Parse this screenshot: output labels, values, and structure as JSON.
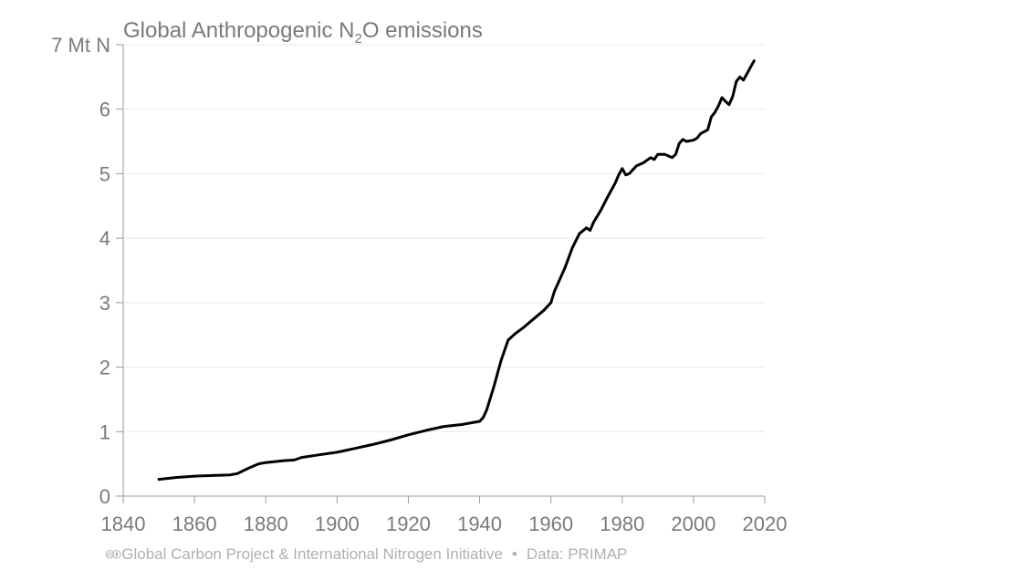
{
  "chart_data": {
    "type": "line",
    "title": "Global Anthropogenic N₂O emissions",
    "title_parts": {
      "prefix": "Global Anthropogenic N",
      "subscript": "2",
      "suffix": "O emissions"
    },
    "ylabel_top": "7 Mt N",
    "xlabel": "",
    "ylabel": "",
    "xlim": [
      1840,
      2020
    ],
    "ylim": [
      0,
      7
    ],
    "x_ticks": [
      1840,
      1860,
      1880,
      1900,
      1920,
      1940,
      1960,
      1980,
      2000,
      2020
    ],
    "y_ticks": [
      {
        "value": 0,
        "label": "0"
      },
      {
        "value": 1,
        "label": "1"
      },
      {
        "value": 2,
        "label": "2"
      },
      {
        "value": 3,
        "label": "3"
      },
      {
        "value": 4,
        "label": "4"
      },
      {
        "value": 5,
        "label": "5"
      },
      {
        "value": 6,
        "label": "6"
      },
      {
        "value": 7,
        "label": "7 Mt N"
      }
    ],
    "grid": true,
    "series": [
      {
        "name": "Global Anthropogenic N2O emissions",
        "color": "#000000",
        "x": [
          1850,
          1855,
          1860,
          1865,
          1870,
          1872,
          1875,
          1878,
          1880,
          1885,
          1888,
          1890,
          1895,
          1900,
          1905,
          1910,
          1915,
          1920,
          1925,
          1930,
          1935,
          1938,
          1940,
          1941,
          1942,
          1944,
          1946,
          1948,
          1950,
          1952,
          1955,
          1958,
          1960,
          1961,
          1962,
          1964,
          1966,
          1968,
          1970,
          1971,
          1972,
          1974,
          1976,
          1978,
          1979,
          1980,
          1981,
          1982,
          1984,
          1986,
          1988,
          1989,
          1990,
          1992,
          1994,
          1995,
          1996,
          1997,
          1998,
          2000,
          2001,
          2002,
          2004,
          2005,
          2006,
          2007,
          2008,
          2009,
          2010,
          2011,
          2012,
          2013,
          2014,
          2015,
          2016,
          2017
        ],
        "values": [
          0.26,
          0.29,
          0.31,
          0.32,
          0.33,
          0.35,
          0.43,
          0.5,
          0.52,
          0.55,
          0.56,
          0.6,
          0.64,
          0.68,
          0.74,
          0.8,
          0.87,
          0.95,
          1.02,
          1.08,
          1.11,
          1.14,
          1.16,
          1.22,
          1.34,
          1.7,
          2.1,
          2.42,
          2.52,
          2.6,
          2.74,
          2.88,
          3.0,
          3.18,
          3.3,
          3.55,
          3.85,
          4.07,
          4.16,
          4.12,
          4.25,
          4.43,
          4.65,
          4.85,
          4.98,
          5.08,
          4.98,
          5.0,
          5.12,
          5.17,
          5.25,
          5.22,
          5.3,
          5.3,
          5.25,
          5.3,
          5.47,
          5.53,
          5.5,
          5.52,
          5.55,
          5.62,
          5.68,
          5.88,
          5.95,
          6.05,
          6.18,
          6.12,
          6.07,
          6.2,
          6.43,
          6.5,
          6.45,
          6.55,
          6.65,
          6.75
        ]
      }
    ]
  },
  "footer": {
    "cc_icons": "🅭🅯",
    "attribution": "Global Carbon Project & International Nitrogen Initiative",
    "separator": "•",
    "source": "Data: PRIMAP"
  }
}
